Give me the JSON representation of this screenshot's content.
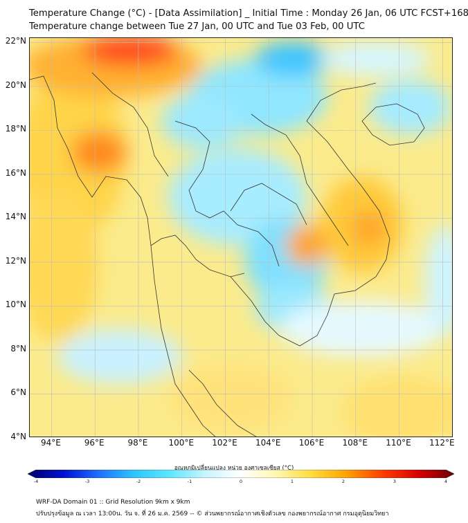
{
  "title": {
    "line1": "Temperature Change (°C) - [Data Assimilation] _ Initial Time : Monday 26 Jan, 06 UTC FCST+168",
    "line2": "Temperature change between Tue 27 Jan, 00 UTC and Tue 03 Feb, 00 UTC"
  },
  "map": {
    "lat_labels": [
      "22°N",
      "20°N",
      "18°N",
      "16°N",
      "14°N",
      "12°N",
      "10°N",
      "8°N",
      "6°N",
      "4°N"
    ],
    "lon_labels": [
      "94°E",
      "96°E",
      "98°E",
      "100°E",
      "102°E",
      "104°E",
      "106°E",
      "108°E",
      "110°E",
      "112°E"
    ],
    "lat_values": [
      22,
      20,
      18,
      16,
      14,
      12,
      10,
      8,
      6,
      4
    ],
    "lon_values": [
      94,
      96,
      98,
      100,
      102,
      104,
      106,
      108,
      110,
      112
    ],
    "lat_range": [
      4,
      22.2
    ],
    "lon_range": [
      93,
      112.5
    ],
    "colors": {
      "grid": "#bbbbbb",
      "border": "#222222",
      "base": "#fbeb8c"
    }
  },
  "colorbar": {
    "title": "อุณหภูมิเปลี่ยนแปลง หน่วย องศาเซลเซียส (°C)",
    "ticks": [
      "-4",
      "-3",
      "-2",
      "-1",
      "0",
      "1",
      "2",
      "3",
      "4"
    ],
    "tick_values": [
      -4,
      -3,
      -2,
      -1,
      0,
      1,
      2,
      3,
      4
    ],
    "range": [
      -4,
      4
    ],
    "colors": [
      "#000066",
      "#0010d0",
      "#1f6fff",
      "#2ec5ff",
      "#5fe6ff",
      "#c8f4ff",
      "#ffffff",
      "#fff7b0",
      "#ffdb3a",
      "#ffa000",
      "#ff3c00",
      "#d80000",
      "#6a0000"
    ]
  },
  "footer": {
    "line1": "WRF-DA Domain 01 :: Grid Resolution 9km x 9km",
    "line2": "ปรับปรุงข้อมูล ณ เวลา 13:00น. วัน จ. ที่ 26 ม.ค. 2569 -- © ส่วนพยากรณ์อากาศเชิงตัวเลข กองพยากรณ์อากาศ กรมอุตุนิยมวิทยา"
  }
}
